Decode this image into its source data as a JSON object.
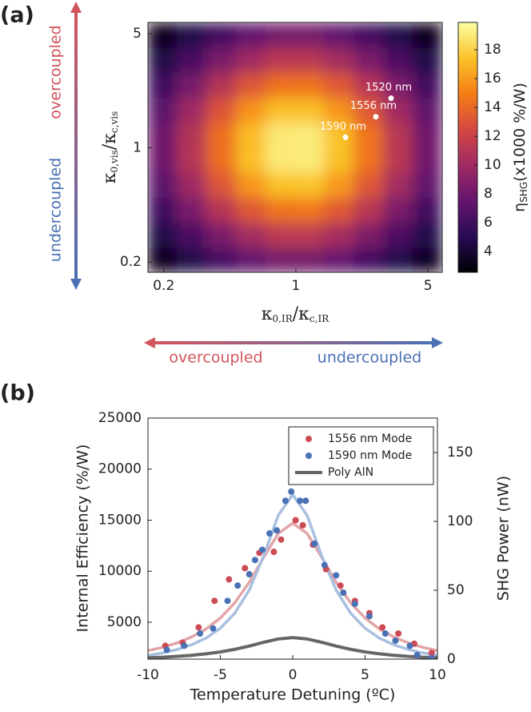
{
  "chart_data": [
    {
      "type": "heatmap",
      "panel_label": "(a)",
      "x_label": [
        "κ",
        "0,IR",
        "/κ",
        "c,IR"
      ],
      "y_label": [
        "κ",
        "0,vis",
        "/κ",
        "c,vis"
      ],
      "colorbar_label": [
        "η",
        "SHG",
        "(x1000 %/W)"
      ],
      "annotations": [
        "overcoupled",
        "undercoupled",
        "overcoupled",
        "undercoupled"
      ],
      "log_x": true,
      "log_y": true,
      "xlim": [
        0.165,
        5.95
      ],
      "ylim": [
        0.173,
        5.85
      ],
      "xticks": [
        0.2,
        1,
        5
      ],
      "yticks": [
        0.2,
        1,
        5
      ],
      "clim": [
        2.56,
        19.9
      ],
      "cticks": [
        4,
        6,
        8,
        10,
        12,
        14,
        16,
        18
      ],
      "colormap": [
        "#000004",
        "#280b54",
        "#65156e",
        "#9f2a63",
        "#d44842",
        "#f57d15",
        "#fac228",
        "#fcffa4"
      ],
      "x": [
        0.197,
        0.282,
        0.404,
        0.579,
        0.828,
        1.185,
        1.696,
        2.428,
        3.474,
        4.972
      ],
      "y": [
        0.206,
        0.293,
        0.417,
        0.593,
        0.844,
        1.2,
        1.706,
        2.425,
        3.449,
        4.904
      ],
      "z": [
        [
          3.4,
          4.7,
          6.2,
          7.4,
          8.2,
          8.2,
          7.5,
          6.2,
          4.8,
          3.5
        ],
        [
          4.7,
          6.5,
          8.5,
          10.2,
          11.3,
          11.3,
          10.3,
          8.6,
          6.6,
          4.8
        ],
        [
          6.0,
          8.4,
          11.0,
          13.2,
          14.5,
          14.6,
          13.3,
          11.1,
          8.5,
          6.1
        ],
        [
          7.2,
          10.0,
          13.1,
          15.8,
          17.4,
          17.5,
          15.9,
          13.2,
          10.2,
          7.4
        ],
        [
          7.9,
          11.0,
          14.3,
          17.3,
          19.0,
          19.1,
          17.4,
          14.5,
          11.2,
          8.0
        ],
        [
          7.9,
          10.9,
          14.3,
          17.2,
          19.0,
          19.1,
          17.4,
          14.5,
          11.1,
          8.0
        ],
        [
          7.1,
          10.0,
          13.0,
          15.7,
          17.3,
          17.3,
          15.8,
          13.2,
          10.1,
          7.3
        ],
        [
          6.0,
          8.3,
          10.9,
          13.1,
          14.4,
          14.5,
          13.2,
          11.0,
          8.5,
          6.1
        ],
        [
          4.6,
          6.4,
          8.4,
          10.1,
          11.2,
          11.2,
          10.2,
          8.5,
          6.5,
          4.7
        ],
        [
          3.4,
          4.7,
          6.1,
          7.4,
          8.2,
          8.2,
          7.4,
          6.2,
          4.8,
          3.4
        ]
      ],
      "markers": {
        "x": [
          3.19,
          2.65,
          1.83
        ],
        "y": [
          2.01,
          1.55,
          1.16
        ],
        "labels": [
          "1520 nm",
          "1556 nm",
          "1590 nm"
        ],
        "color": "#ffffff"
      }
    },
    {
      "type": "line",
      "panel_label": "(b)",
      "x_label": "Temperature Detuning (ºC)",
      "y_label": "Internal Efficiency (%/W)",
      "y2_label": "SHG Power (nW)",
      "xlim": [
        -10,
        10
      ],
      "xticks": [
        -10,
        -5,
        0,
        5,
        10
      ],
      "ylim": [
        1390,
        25000
      ],
      "yticks": [
        5000,
        10000,
        15000,
        20000,
        25000
      ],
      "y2lim": [
        0,
        175
      ],
      "y2ticks": [
        0,
        50,
        100,
        150
      ],
      "series": [
        {
          "type": "line",
          "color": "#e3a5a8",
          "x": [
            -10,
            -9,
            -8,
            -7,
            -6,
            -5,
            -4,
            -3,
            -2,
            -1,
            0,
            1,
            2,
            3,
            4,
            5,
            6,
            7,
            8,
            9,
            10
          ],
          "values": [
            2218,
            2545,
            2974,
            3549,
            4332,
            5414,
            6909,
            8923,
            11372,
            13692,
            14700,
            13692,
            11372,
            8923,
            6909,
            5414,
            4332,
            3549,
            2974,
            2545,
            2218
          ]
        },
        {
          "type": "line",
          "color": "#a8bfdf",
          "x": [
            -10,
            -9,
            -8,
            -7,
            -6,
            -5,
            -4,
            -3,
            -2,
            -1,
            0,
            1,
            2,
            3,
            4,
            5,
            6,
            7,
            8,
            9,
            10
          ],
          "values": [
            1748,
            1996,
            2328,
            2789,
            3446,
            4416,
            5889,
            8162,
            11510,
            15464,
            17500,
            15464,
            11510,
            8162,
            5889,
            4416,
            3446,
            2789,
            2328,
            1996,
            1748
          ]
        },
        {
          "type": "line",
          "name": "Poly AlN",
          "color": "#666666",
          "x": [
            -10,
            -9,
            -8,
            -7,
            -6,
            -5,
            -4,
            -3,
            -2,
            -1,
            0,
            1,
            2,
            3,
            4,
            5,
            6,
            7,
            8,
            9,
            10
          ],
          "values": [
            1517,
            1579,
            1660,
            1766,
            1908,
            2098,
            2350,
            2672,
            3040,
            3365,
            3500,
            3365,
            3040,
            2672,
            2350,
            2098,
            1908,
            1766,
            1660,
            1579,
            1517
          ]
        },
        {
          "type": "scatter",
          "name": "1556 nm Mode",
          "color": "#cc4c55",
          "x": [
            -8.8,
            -7.6,
            -6.5,
            -5.4,
            -4.4,
            -3.3,
            -2.3,
            -1.3,
            -0.8,
            0.2,
            0.7,
            1.4,
            2.3,
            3.3,
            4.3,
            5.3,
            6.2,
            7.3,
            8.4,
            9.6
          ],
          "values": [
            2700,
            3000,
            4500,
            7100,
            9200,
            10300,
            11800,
            11900,
            13100,
            15000,
            14500,
            12600,
            10200,
            8600,
            7100,
            5900,
            4500,
            3900,
            2900,
            2000
          ]
        },
        {
          "type": "scatter",
          "name": "1590 nm Mode",
          "color": "#4a70b5",
          "x": [
            -8.7,
            -7.5,
            -6.4,
            -5.5,
            -4.5,
            -3.8,
            -3.0,
            -2.6,
            -2.1,
            -1.6,
            -1.1,
            -0.5,
            -0.1,
            0.5,
            0.9,
            1.5,
            2.2,
            3.0,
            3.5,
            4.3,
            5.3,
            6.4,
            7.1,
            8.1,
            8.6,
            9.6
          ],
          "values": [
            2300,
            2700,
            3900,
            4400,
            7100,
            8600,
            9700,
            11100,
            12100,
            13700,
            14000,
            16900,
            17800,
            16900,
            16900,
            12700,
            10600,
            9600,
            7900,
            6800,
            5600,
            3900,
            3200,
            2700,
            1800,
            1500
          ]
        }
      ]
    }
  ]
}
